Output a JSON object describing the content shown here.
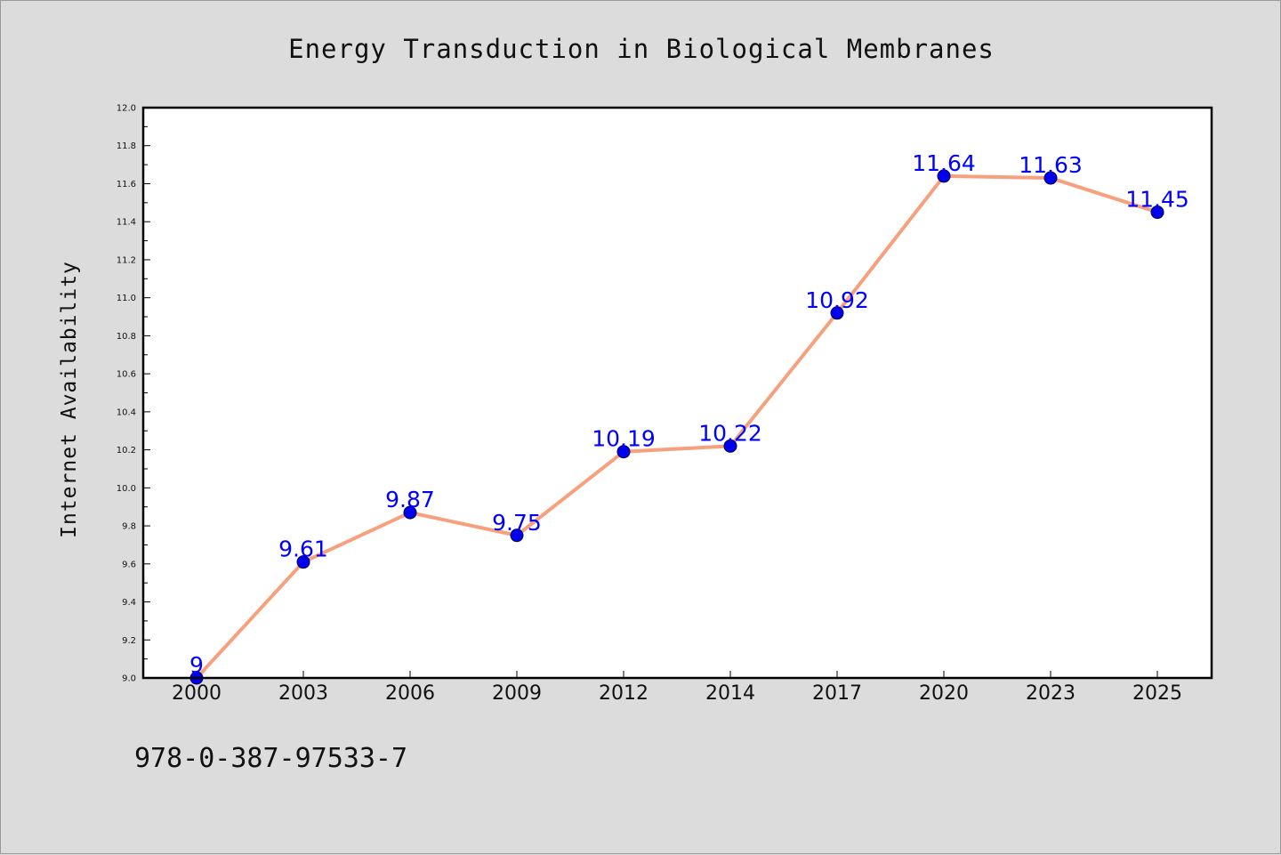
{
  "colors": {
    "background": "#dcdcdc",
    "plot_background": "#ffffff",
    "line": "#f7a07e",
    "marker": "#0000ee",
    "data_label": "#0000ff",
    "axis": "#000000"
  },
  "footer": {
    "isbn": "978-0-387-97533-7"
  },
  "chart_data": {
    "type": "line",
    "title": "Energy Transduction in Biological Membranes",
    "xlabel": "",
    "ylabel": "Internet Availability",
    "categories": [
      "2000",
      "2003",
      "2006",
      "2009",
      "2012",
      "2014",
      "2017",
      "2020",
      "2023",
      "2025"
    ],
    "values": [
      9,
      9.61,
      9.87,
      9.75,
      10.19,
      10.22,
      10.92,
      11.64,
      11.63,
      11.45
    ],
    "value_labels": [
      "9",
      "9.61",
      "9.87",
      "9.75",
      "10.19",
      "10.22",
      "10.92",
      "11.64",
      "11.63",
      "11.45"
    ],
    "ylim": [
      9.0,
      12.0
    ],
    "yticks": [
      "9.0",
      "9.2",
      "9.4",
      "9.6",
      "9.8",
      "10.0",
      "10.2",
      "10.4",
      "10.6",
      "10.8",
      "11.0",
      "11.2",
      "11.4",
      "11.6",
      "11.8",
      "12.0"
    ],
    "grid": false,
    "legend": "none"
  }
}
